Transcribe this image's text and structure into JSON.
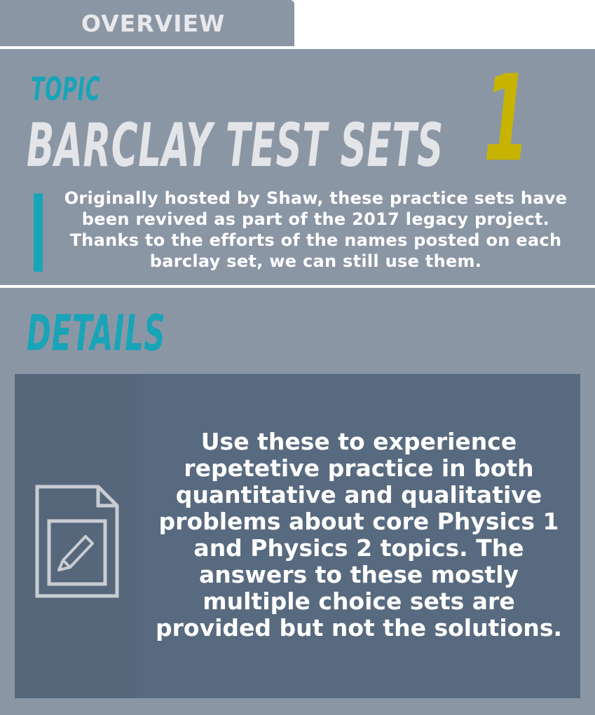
{
  "tab": {
    "label": "OVERVIEW"
  },
  "topic": {
    "label": "TOPIC",
    "title": "BARCLAY TEST SETS",
    "number": "1",
    "intro": "Originally hosted by Shaw, these practice sets have been revived as part of the 2017 legacy project. Thanks to the efforts of the names posted on each barclay set, we can still use them."
  },
  "details": {
    "heading": "DETAILS",
    "icon": "document-edit-icon",
    "text": "Use these to experience repetetive practice in both quantitative and qualitative problems about core Physics 1 and Physics 2 topics. The answers to these mostly multiple choice sets are provided but not the solutions."
  },
  "colors": {
    "panel": "#8b96a5",
    "accent": "#19a4b8",
    "number": "#c6b400",
    "card": "#586a7f"
  }
}
